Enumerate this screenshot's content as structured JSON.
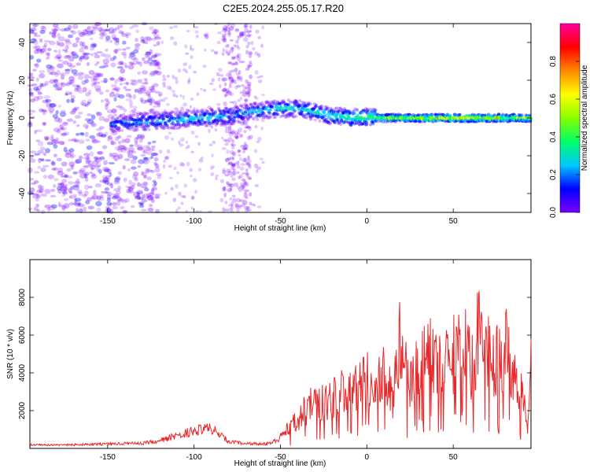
{
  "title": "C2E5.2024.255.05.17.R20",
  "colors": {
    "line": "#e8282a",
    "cmap": [
      "#ffffff",
      "#7a00ff",
      "#0000ff",
      "#00c8ff",
      "#00ff66",
      "#88ff00",
      "#ffff00",
      "#ff8800",
      "#ff0000",
      "#ff00a0"
    ]
  },
  "chart_data": [
    {
      "type": "heatmap",
      "xlabel": "Height of straight line (km)",
      "ylabel": "Frequency (Hz)",
      "xlim": [
        -195,
        95
      ],
      "ylim": [
        -50,
        50
      ],
      "xticks": [
        -150,
        -100,
        -50,
        0,
        50
      ],
      "yticks": [
        -40,
        -20,
        0,
        20,
        40
      ],
      "colorbar": {
        "label": "Normalized spectral amplitude",
        "range": [
          0,
          1
        ],
        "ticks": [
          "0.0",
          "0.2",
          "0.4",
          "0.6",
          "0.8"
        ]
      },
      "ridge": {
        "x": [
          -148,
          -130,
          -110,
          -95,
          -80,
          -70,
          -60,
          -50,
          -40,
          -30,
          -20,
          -10,
          0,
          10,
          30,
          60,
          95
        ],
        "center_hz": [
          -3,
          -2,
          -1,
          0,
          1,
          3,
          4,
          5,
          5,
          3,
          1,
          0.5,
          0.5,
          0,
          0,
          0,
          0
        ],
        "peak_amplitude": [
          0.3,
          0.35,
          0.38,
          0.4,
          0.42,
          0.35,
          0.4,
          0.42,
          0.45,
          0.42,
          0.5,
          0.55,
          0.6,
          0.68,
          0.8,
          0.85,
          0.7
        ]
      }
    },
    {
      "type": "line",
      "xlabel": "Height of straight line (km)",
      "ylabel": "SNR (10 * v/v)",
      "xlim": [
        -195,
        95
      ],
      "ylim": [
        0,
        10000
      ],
      "xticks": [
        -150,
        -100,
        -50,
        0,
        50
      ],
      "yticks": [
        2000,
        4000,
        6000,
        8000
      ],
      "series": [
        {
          "x": [
            -195,
            -170,
            -150,
            -130,
            -120,
            -110,
            -100,
            -90,
            -85,
            -80,
            -75,
            -70,
            -60,
            -55,
            -50,
            -45,
            -40,
            -35,
            -30,
            -25,
            -20,
            -15,
            -10,
            -5,
            0,
            5,
            10,
            15,
            18,
            20,
            22,
            25,
            30,
            35,
            40,
            45,
            50,
            55,
            60,
            62,
            65,
            68,
            70,
            75,
            80,
            85,
            88,
            90,
            93,
            95
          ],
          "y": [
            250,
            250,
            300,
            350,
            500,
            900,
            1200,
            1400,
            900,
            500,
            400,
            350,
            300,
            450,
            800,
            1500,
            2200,
            3000,
            3700,
            3500,
            3900,
            4300,
            4100,
            4600,
            5200,
            4400,
            5700,
            3800,
            7300,
            8300,
            6000,
            4500,
            6300,
            7400,
            6400,
            6700,
            7100,
            8600,
            6500,
            5700,
            9800,
            5800,
            7400,
            6600,
            7700,
            5600,
            3700,
            4200,
            1200,
            5800
          ]
        }
      ]
    }
  ]
}
